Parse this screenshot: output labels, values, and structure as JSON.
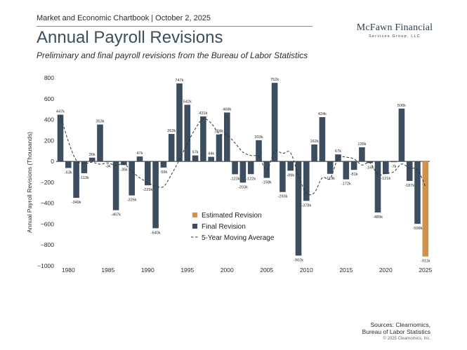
{
  "header": {
    "label": "Market and Economic Chartbook | October 2, 2025",
    "title": "Annual Payroll Revisions",
    "subtitle": "Preliminary and final payroll revisions from the Bureau of Labor Statistics"
  },
  "logo": {
    "main": "McFawn Financial",
    "sub": "Services Group, LLC"
  },
  "footer": {
    "sources_line1": "Sources: Clearnomics,",
    "sources_line2": "Bureau of Labor Statistics",
    "copyright": "© 2025 Clearnomics, Inc."
  },
  "colors": {
    "final": "#3b4d5e",
    "estimated": "#d4914a",
    "moving_average": "#333333"
  },
  "chart_data": {
    "type": "bar",
    "title": "",
    "xlabel": "",
    "ylabel": "Annual Payroll Revisions (Thousands)",
    "ylim": [
      -1000,
      800
    ],
    "xlim": [
      1979,
      2025.5
    ],
    "yticks": [
      800,
      600,
      400,
      200,
      0,
      -200,
      -400,
      -600,
      -800,
      -1000
    ],
    "ytick_labels": [
      "800",
      "600",
      "400",
      "200",
      "0",
      "−200",
      "−400",
      "−600",
      "−800",
      "−1000"
    ],
    "xticks": [
      1980,
      1985,
      1990,
      1995,
      2000,
      2005,
      2010,
      2015,
      2020,
      2025
    ],
    "legend_position": "center-right",
    "series": [
      {
        "name": "Final Revision",
        "color": "#3b4d5e",
        "points": [
          {
            "x": 1979,
            "y": 447,
            "label": "447k"
          },
          {
            "x": 1980,
            "y": -63,
            "label": "-63k"
          },
          {
            "x": 1981,
            "y": -349,
            "label": "-349k"
          },
          {
            "x": 1982,
            "y": -113,
            "label": "-113k"
          },
          {
            "x": 1983,
            "y": 36,
            "label": "36k"
          },
          {
            "x": 1984,
            "y": 353,
            "label": "353k"
          },
          {
            "x": 1985,
            "y": -3,
            "label": "-3k"
          },
          {
            "x": 1986,
            "y": -467,
            "label": "-467k"
          },
          {
            "x": 1987,
            "y": -35,
            "label": "-35k"
          },
          {
            "x": 1988,
            "y": -326,
            "label": "-326k"
          },
          {
            "x": 1989,
            "y": 47,
            "label": "47k"
          },
          {
            "x": 1990,
            "y": -229,
            "label": "-229k"
          },
          {
            "x": 1991,
            "y": -640,
            "label": "-640k"
          },
          {
            "x": 1992,
            "y": -59,
            "label": "-59k"
          },
          {
            "x": 1993,
            "y": 263,
            "label": "263k"
          },
          {
            "x": 1994,
            "y": 747,
            "label": "747k"
          },
          {
            "x": 1995,
            "y": 542,
            "label": "542k"
          },
          {
            "x": 1996,
            "y": 57,
            "label": "57k"
          },
          {
            "x": 1997,
            "y": 431,
            "label": "431k"
          },
          {
            "x": 1998,
            "y": 44,
            "label": "44k"
          },
          {
            "x": 1999,
            "y": 258,
            "label": "258k"
          },
          {
            "x": 2000,
            "y": 468,
            "label": "468k"
          },
          {
            "x": 2001,
            "y": -123,
            "label": "-123k"
          },
          {
            "x": 2002,
            "y": -203,
            "label": "-203k"
          },
          {
            "x": 2003,
            "y": -122,
            "label": "-122k"
          },
          {
            "x": 2004,
            "y": 203,
            "label": "203k"
          },
          {
            "x": 2005,
            "y": -158,
            "label": "-158k"
          },
          {
            "x": 2006,
            "y": 752,
            "label": "752k"
          },
          {
            "x": 2007,
            "y": -293,
            "label": "-293k"
          },
          {
            "x": 2008,
            "y": -89,
            "label": "-89k"
          },
          {
            "x": 2009,
            "y": -902,
            "label": "-902k"
          },
          {
            "x": 2010,
            "y": -378,
            "label": "-378k"
          },
          {
            "x": 2011,
            "y": 162,
            "label": "162k"
          },
          {
            "x": 2012,
            "y": 424,
            "label": "424k"
          },
          {
            "x": 2013,
            "y": -119,
            "label": "-119k"
          },
          {
            "x": 2014,
            "y": 67,
            "label": "67k"
          },
          {
            "x": 2015,
            "y": -172,
            "label": "-172k"
          },
          {
            "x": 2016,
            "y": -81,
            "label": "-81k"
          },
          {
            "x": 2017,
            "y": 135,
            "label": "135k"
          },
          {
            "x": 2018,
            "y": -16,
            "label": "-16k"
          },
          {
            "x": 2019,
            "y": -489,
            "label": "-489k"
          },
          {
            "x": 2020,
            "y": -121,
            "label": "-121k"
          },
          {
            "x": 2021,
            "y": -7,
            "label": "-7k"
          },
          {
            "x": 2022,
            "y": 506,
            "label": "506k"
          },
          {
            "x": 2023,
            "y": -187,
            "label": "-187k"
          },
          {
            "x": 2024,
            "y": -598,
            "label": "-598k"
          }
        ]
      },
      {
        "name": "Estimated Revision",
        "color": "#d4914a",
        "points": [
          {
            "x": 2025,
            "y": -911,
            "label": "-911k"
          }
        ]
      },
      {
        "name": "5-Year Moving Average",
        "type": "line",
        "dashed": true,
        "color": "#333333",
        "points": [
          {
            "x": 1979,
            "y": 447
          },
          {
            "x": 1980,
            "y": 192
          },
          {
            "x": 1981,
            "y": 12
          },
          {
            "x": 1982,
            "y": -20
          },
          {
            "x": 1983,
            "y": -8
          },
          {
            "x": 1984,
            "y": -27
          },
          {
            "x": 1985,
            "y": -15
          },
          {
            "x": 1986,
            "y": -39
          },
          {
            "x": 1987,
            "y": -23
          },
          {
            "x": 1988,
            "y": -96
          },
          {
            "x": 1989,
            "y": -157
          },
          {
            "x": 1990,
            "y": -202
          },
          {
            "x": 1991,
            "y": -237
          },
          {
            "x": 1992,
            "y": -241
          },
          {
            "x": 1993,
            "y": -124
          },
          {
            "x": 1994,
            "y": 16
          },
          {
            "x": 1995,
            "y": 171
          },
          {
            "x": 1996,
            "y": 312
          },
          {
            "x": 1997,
            "y": 408
          },
          {
            "x": 1998,
            "y": 366
          },
          {
            "x": 1999,
            "y": 266
          },
          {
            "x": 2000,
            "y": 252
          },
          {
            "x": 2001,
            "y": 176
          },
          {
            "x": 2002,
            "y": 89
          },
          {
            "x": 2003,
            "y": 56
          },
          {
            "x": 2004,
            "y": 45
          },
          {
            "x": 2005,
            "y": -81
          },
          {
            "x": 2006,
            "y": 94
          },
          {
            "x": 2007,
            "y": 76
          },
          {
            "x": 2008,
            "y": 83
          },
          {
            "x": 2009,
            "y": -138
          },
          {
            "x": 2010,
            "y": -302
          },
          {
            "x": 2011,
            "y": -300
          },
          {
            "x": 2012,
            "y": -157
          },
          {
            "x": 2013,
            "y": -163
          },
          {
            "x": 2014,
            "y": 31
          },
          {
            "x": 2015,
            "y": 40
          },
          {
            "x": 2016,
            "y": 24
          },
          {
            "x": 2017,
            "y": -34
          },
          {
            "x": 2018,
            "y": -13
          },
          {
            "x": 2019,
            "y": -125
          },
          {
            "x": 2020,
            "y": -114
          },
          {
            "x": 2021,
            "y": -100
          },
          {
            "x": 2022,
            "y": -25
          },
          {
            "x": 2023,
            "y": -64
          },
          {
            "x": 2024,
            "y": -81
          },
          {
            "x": 2025,
            "y": -239
          }
        ]
      }
    ]
  }
}
